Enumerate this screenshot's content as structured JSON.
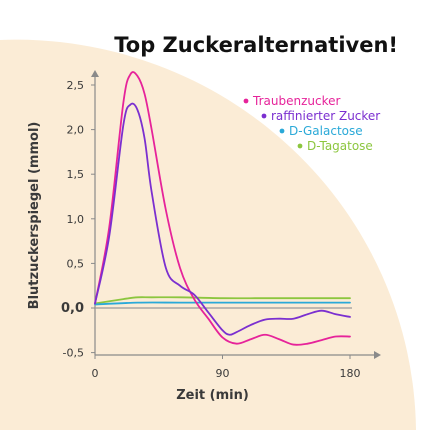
{
  "colors": {
    "background": "#fbecd6",
    "axis": "#8a8a8a",
    "text": "#3a3a3a",
    "title": "#111111"
  },
  "chart_data": {
    "type": "line",
    "title": "Top Zuckeralternativen!",
    "xlabel": "Zeit (min)",
    "ylabel": "Blutzuckerspiegel (mmol)",
    "xlim": [
      0,
      180
    ],
    "ylim": [
      -0.5,
      2.7
    ],
    "xticks": [
      0,
      90,
      180
    ],
    "xtick_labels": [
      "0",
      "90",
      "180"
    ],
    "yticks": [
      -0.5,
      0,
      0.5,
      1,
      1.5,
      2,
      2.5
    ],
    "ytick_labels": [
      "-0,5",
      "0,0",
      "0,5",
      "1,0",
      "1,5",
      "2,0",
      "2,5"
    ],
    "legend_position": "top-right",
    "baseline": 0,
    "series": [
      {
        "name": "Traubenzucker",
        "color": "#e6239a",
        "x": [
          0,
          10,
          20,
          25,
          30,
          35,
          40,
          50,
          60,
          70,
          80,
          90,
          100,
          110,
          120,
          130,
          140,
          150,
          160,
          170,
          180
        ],
        "y": [
          0.05,
          0.9,
          2.3,
          2.62,
          2.6,
          2.4,
          2.0,
          1.1,
          0.45,
          0.1,
          -0.12,
          -0.33,
          -0.4,
          -0.35,
          -0.3,
          -0.35,
          -0.41,
          -0.4,
          -0.36,
          -0.32,
          -0.32
        ]
      },
      {
        "name": "raffinierter Zucker",
        "color": "#7b2fd0",
        "x": [
          0,
          10,
          20,
          25,
          30,
          35,
          40,
          50,
          60,
          70,
          80,
          90,
          95,
          100,
          110,
          120,
          130,
          140,
          150,
          160,
          170,
          180
        ],
        "y": [
          0.05,
          0.8,
          2.05,
          2.28,
          2.22,
          1.9,
          1.3,
          0.45,
          0.25,
          0.15,
          -0.05,
          -0.25,
          -0.3,
          -0.27,
          -0.19,
          -0.13,
          -0.12,
          -0.12,
          -0.07,
          -0.03,
          -0.07,
          -0.1
        ]
      },
      {
        "name": "D-Galactose",
        "color": "#2aa9d8",
        "x": [
          0,
          30,
          60,
          90,
          120,
          150,
          180
        ],
        "y": [
          0.04,
          0.06,
          0.06,
          0.06,
          0.06,
          0.06,
          0.06
        ]
      },
      {
        "name": "D-Tagatose",
        "color": "#8cc63f",
        "x": [
          0,
          20,
          30,
          40,
          60,
          90,
          120,
          150,
          180
        ],
        "y": [
          0.05,
          0.1,
          0.12,
          0.12,
          0.12,
          0.11,
          0.11,
          0.11,
          0.11
        ]
      }
    ]
  }
}
